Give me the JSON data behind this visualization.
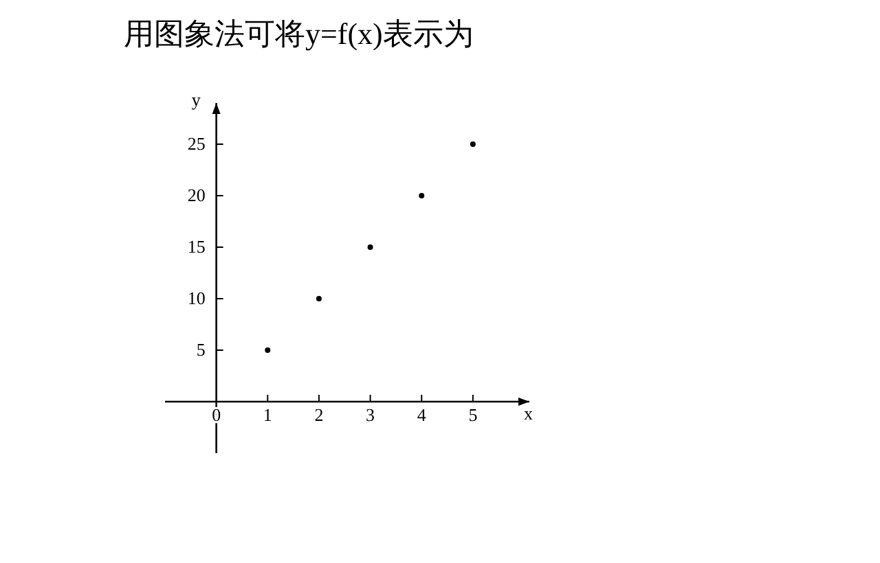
{
  "chart_data": {
    "type": "scatter",
    "title": "用图象法可将y=f(x)表示为",
    "xlabel": "x",
    "ylabel": "y",
    "x": [
      1,
      2,
      3,
      4,
      5
    ],
    "series": [
      {
        "color": "#000000",
        "values": [
          5,
          10,
          15,
          20,
          25
        ]
      }
    ],
    "xlim": [
      -1,
      6.1
    ],
    "ylim": [
      -5,
      29
    ],
    "xticks": [
      0,
      1,
      2,
      3,
      4,
      5
    ],
    "yticks": [
      5,
      10,
      15,
      20,
      25
    ],
    "grid": false,
    "marker": "circle"
  }
}
